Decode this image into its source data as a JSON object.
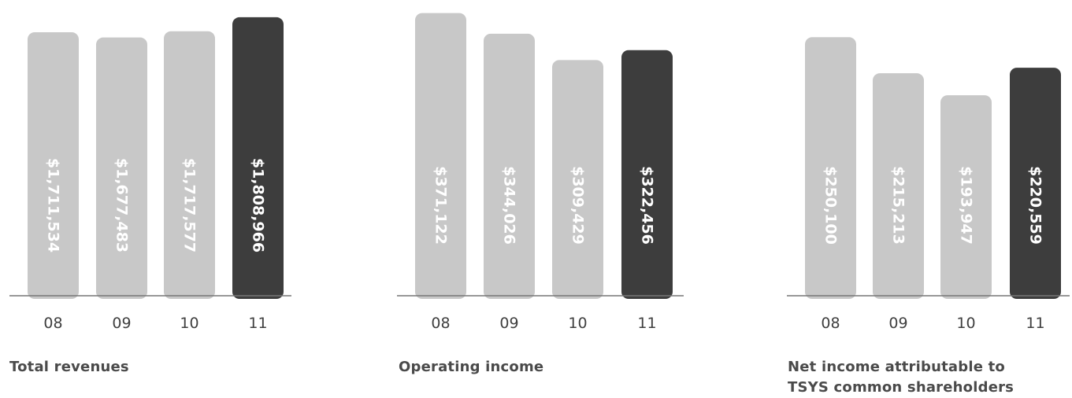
{
  "chart_data": [
    {
      "type": "bar",
      "title": "Total revenues",
      "categories": [
        "08",
        "09",
        "10",
        "11"
      ],
      "values": [
        1711534,
        1677483,
        1717577,
        1808966
      ],
      "value_labels": [
        "$1,711,534",
        "$1,677,483",
        "$1,717,577",
        "$1,808,966"
      ],
      "highlight_index": 3,
      "ylim": [
        0,
        1880000
      ],
      "grid": false,
      "label_orientation": "vertical"
    },
    {
      "type": "bar",
      "title": "Operating income",
      "categories": [
        "08",
        "09",
        "10",
        "11"
      ],
      "values": [
        371122,
        344026,
        309429,
        322456
      ],
      "value_labels": [
        "$371,122",
        "$344,026",
        "$309,429",
        "$322,456"
      ],
      "highlight_index": 3,
      "ylim": [
        0,
        380000
      ],
      "grid": false,
      "label_orientation": "vertical"
    },
    {
      "type": "bar",
      "title": "Net income attributable to\nTSYS common shareholders",
      "categories": [
        "08",
        "09",
        "10",
        "11"
      ],
      "values": [
        250100,
        215213,
        193947,
        220559
      ],
      "value_labels": [
        "$250,100",
        "$215,213",
        "$193,947",
        "$220,559"
      ],
      "highlight_index": 3,
      "ylim": [
        0,
        280000
      ],
      "grid": false,
      "label_orientation": "vertical"
    }
  ],
  "colors": {
    "bar": "#c8c8c8",
    "bar_highlight": "#3d3d3d",
    "label_on_bar": "#ffffff",
    "axis": "#777777",
    "text": "#4a4a4a"
  }
}
